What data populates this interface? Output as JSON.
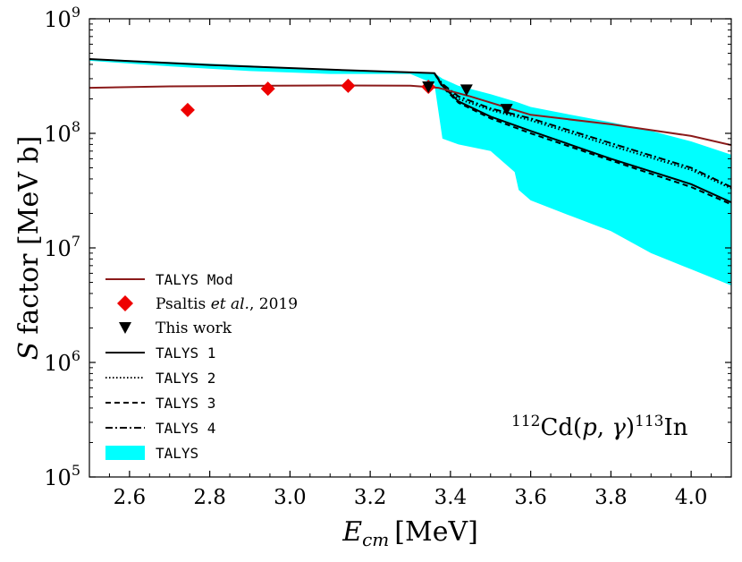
{
  "chart_data": {
    "type": "line",
    "xlabel": "E_cm [MeV]",
    "ylabel": "S factor [MeV b]",
    "xlabel_main": "E",
    "xlabel_sub": "cm",
    "xlabel_unit": "[MeV]",
    "ylabel_italic": "S",
    "ylabel_rest": "factor [MeV b]",
    "xlim": [
      2.5,
      4.1
    ],
    "ylim_log10": [
      5,
      9
    ],
    "yscale": "log",
    "xticks": [
      2.6,
      2.8,
      3.0,
      3.2,
      3.4,
      3.6,
      3.8,
      4.0
    ],
    "xtick_labels": [
      "2.6",
      "2.8",
      "3.0",
      "3.2",
      "3.4",
      "3.6",
      "3.8",
      "4.0"
    ],
    "yticks_log10": [
      5,
      6,
      7,
      8,
      9
    ],
    "ytick_base": "10",
    "ytick_exponents": [
      "5",
      "6",
      "7",
      "8",
      "9"
    ],
    "annotation": {
      "pre_mass": "112",
      "target": "Cd(",
      "p": "p",
      "comma": ", ",
      "gamma": "γ",
      "close": ")",
      "post_mass": "113",
      "product": "In",
      "full": "112Cd(p,γ)113In"
    },
    "legend": [
      {
        "label": "TALYS Mod",
        "style": "mod",
        "font": "mono"
      },
      {
        "label_parts": [
          "Psaltis ",
          "et al.",
          ", 2019"
        ],
        "style": "diamond",
        "font": "serif"
      },
      {
        "label": "This work",
        "style": "triangle",
        "font": "serif"
      },
      {
        "label": "TALYS 1",
        "style": "solid",
        "font": "mono"
      },
      {
        "label": "TALYS 2",
        "style": "dotted",
        "font": "mono"
      },
      {
        "label": "TALYS 3",
        "style": "dashed",
        "font": "mono"
      },
      {
        "label": "TALYS 4",
        "style": "dashdot",
        "font": "mono"
      },
      {
        "label": "TALYS",
        "style": "band",
        "font": "mono"
      }
    ],
    "colors": {
      "talys_mod": "#8b1a1a",
      "psaltis": "#ee0000",
      "this_work": "#000000",
      "band": "#00ffff",
      "talys_lines": "#000000"
    },
    "series": [
      {
        "name": "TALYS Mod",
        "x": [
          2.5,
          2.7,
          2.9,
          3.1,
          3.3,
          3.37,
          3.45,
          3.6,
          3.8,
          4.0,
          4.1
        ],
        "y": [
          250000000.0,
          257000000.0,
          260000000.0,
          262000000.0,
          261000000.0,
          250000000.0,
          210000000.0,
          145000000.0,
          120000000.0,
          95000000.0,
          79000000.0
        ]
      },
      {
        "name": "TALYS 1",
        "x": [
          2.5,
          2.8,
          3.1,
          3.36,
          3.38,
          3.42,
          3.5,
          3.6,
          3.8,
          4.0,
          4.1
        ],
        "y": [
          445000000.0,
          395000000.0,
          360000000.0,
          335000000.0,
          260000000.0,
          190000000.0,
          140000000.0,
          105000000.0,
          60000000.0,
          36000000.0,
          25000000.0
        ]
      },
      {
        "name": "TALYS 2",
        "x": [
          3.36,
          3.38,
          3.42,
          3.5,
          3.6,
          3.8,
          4.0,
          4.1
        ],
        "y": [
          335000000.0,
          265000000.0,
          200000000.0,
          160000000.0,
          130000000.0,
          78000000.0,
          48000000.0,
          33000000.0
        ]
      },
      {
        "name": "TALYS 3",
        "x": [
          3.36,
          3.38,
          3.42,
          3.5,
          3.6,
          3.8,
          4.0,
          4.1
        ],
        "y": [
          335000000.0,
          255000000.0,
          185000000.0,
          135000000.0,
          100000000.0,
          58000000.0,
          34000000.0,
          24000000.0
        ]
      },
      {
        "name": "TALYS 4",
        "x": [
          3.36,
          3.38,
          3.42,
          3.5,
          3.6,
          3.8,
          4.0,
          4.1
        ],
        "y": [
          335000000.0,
          270000000.0,
          210000000.0,
          165000000.0,
          135000000.0,
          82000000.0,
          50000000.0,
          34000000.0
        ]
      },
      {
        "name": "Psaltis et al., 2019",
        "x": [
          2.745,
          2.945,
          3.145,
          3.345
        ],
        "y": [
          160000000.0,
          245000000.0,
          260000000.0,
          255000000.0
        ]
      },
      {
        "name": "This work",
        "x": [
          3.345,
          3.44,
          3.54
        ],
        "y": [
          255000000.0,
          240000000.0,
          162000000.0
        ]
      }
    ],
    "band": {
      "name": "TALYS",
      "x": [
        2.5,
        2.7,
        2.9,
        3.1,
        3.3,
        3.36,
        3.38,
        3.42,
        3.5,
        3.56,
        3.57,
        3.6,
        3.7,
        3.8,
        3.9,
        4.0,
        4.1
      ],
      "upper": [
        450000000.0,
        420000000.0,
        390000000.0,
        360000000.0,
        340000000.0,
        335000000.0,
        300000000.0,
        260000000.0,
        220000000.0,
        190000000.0,
        185000000.0,
        170000000.0,
        145000000.0,
        125000000.0,
        105000000.0,
        85000000.0,
        65000000.0
      ],
      "lower": [
        430000000.0,
        385000000.0,
        350000000.0,
        330000000.0,
        330000000.0,
        270000000.0,
        90000000.0,
        80000000.0,
        70000000.0,
        46000000.0,
        32000000.0,
        26000000.0,
        19000000.0,
        14000000.0,
        9000000.0,
        6500000.0,
        4700000.0
      ]
    }
  }
}
